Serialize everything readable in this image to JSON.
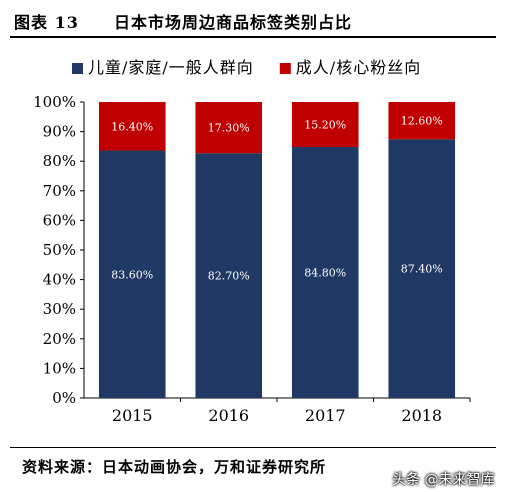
{
  "header": {
    "label": "图表 13",
    "title": "日本市场周边商品标签类别占比"
  },
  "footer": {
    "source": "资料来源：日本动画协会，万和证券研究所",
    "watermark": "头条 @未来智库"
  },
  "chart_data": {
    "type": "bar",
    "stacked": true,
    "categories": [
      "2015",
      "2016",
      "2017",
      "2018"
    ],
    "series": [
      {
        "name": "儿童/家庭/一般人群向",
        "color": "#1f3864",
        "values": [
          83.6,
          82.7,
          84.8,
          87.4
        ],
        "labels": [
          "83.60%",
          "82.70%",
          "84.80%",
          "87.40%"
        ]
      },
      {
        "name": "成人/核心粉丝向",
        "color": "#c00000",
        "values": [
          16.4,
          17.3,
          15.2,
          12.6
        ],
        "labels": [
          "16.40%",
          "17.30%",
          "15.20%",
          "12.60%"
        ]
      }
    ],
    "yticks": [
      "0%",
      "10%",
      "20%",
      "30%",
      "40%",
      "50%",
      "60%",
      "70%",
      "80%",
      "90%",
      "100%"
    ],
    "ylim": [
      0,
      100
    ],
    "legend": "top",
    "grid": false
  }
}
